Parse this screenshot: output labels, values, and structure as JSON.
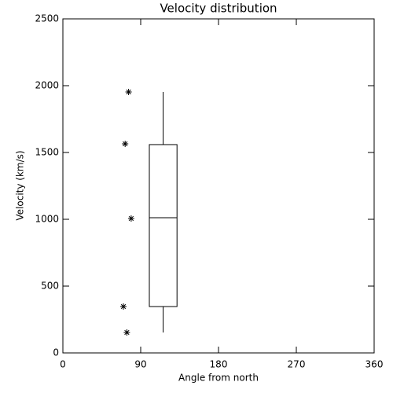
{
  "chart_data": {
    "type": "box",
    "title": "Velocity distribution",
    "xlabel": "Angle from north",
    "ylabel": "Velocity (km/s)",
    "xlim": [
      0,
      360
    ],
    "xticks": [
      0,
      90,
      180,
      270,
      360
    ],
    "ylim": [
      0,
      2500
    ],
    "yticks": [
      0,
      500,
      1000,
      1500,
      2000,
      2500
    ],
    "color": "#000000",
    "box": {
      "x": 116,
      "width": 32,
      "min": 153,
      "q1": 347,
      "median": 1012,
      "q3": 1559,
      "max": 1953
    },
    "points": {
      "x": [
        76,
        72,
        79,
        70,
        74
      ],
      "values": [
        1953,
        1565,
        1006,
        347,
        153
      ]
    }
  }
}
